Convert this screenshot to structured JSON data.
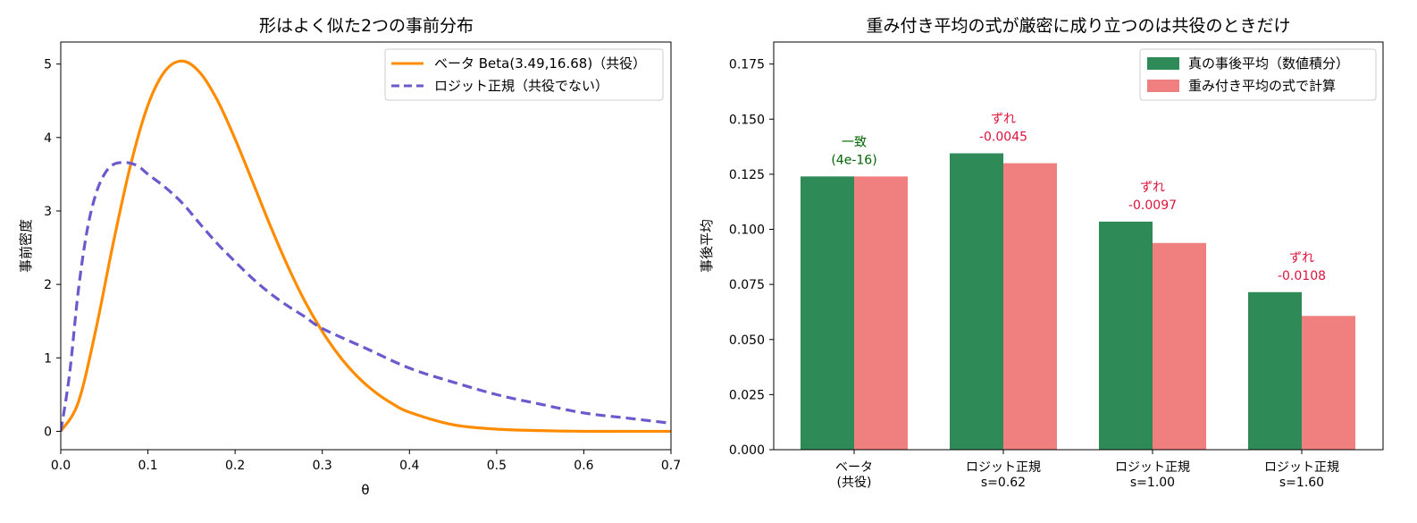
{
  "chart_data": [
    {
      "type": "line",
      "title": "形はよく似た2つの事前分布",
      "xlabel": "θ",
      "ylabel": "事前密度",
      "xlim": [
        0.0,
        0.7
      ],
      "ylim": [
        -0.25,
        5.3
      ],
      "x_ticks": [
        "0.0",
        "0.1",
        "0.2",
        "0.3",
        "0.4",
        "0.5",
        "0.6",
        "0.7"
      ],
      "y_ticks": [
        "0",
        "1",
        "2",
        "3",
        "4",
        "5"
      ],
      "legend_position": "top-right",
      "series": [
        {
          "name": "ベータ Beta(3.49,16.68)（共役）",
          "color": "#ff8c00",
          "style": "solid",
          "x": [
            0,
            0.02,
            0.04,
            0.06,
            0.08,
            0.1,
            0.12,
            0.14,
            0.16,
            0.18,
            0.2,
            0.22,
            0.24,
            0.26,
            0.28,
            0.3,
            0.32,
            0.34,
            0.36,
            0.38,
            0.4,
            0.45,
            0.5,
            0.55,
            0.6,
            0.65,
            0.7
          ],
          "y": [
            0,
            0.39,
            1.37,
            2.55,
            3.62,
            4.44,
            4.91,
            5.04,
            4.88,
            4.5,
            3.98,
            3.4,
            2.81,
            2.26,
            1.77,
            1.36,
            1.02,
            0.75,
            0.54,
            0.38,
            0.26,
            0.09,
            0.03,
            0.01,
            0.0,
            0.0,
            0.0
          ]
        },
        {
          "name": "ロジット正規（共役でない）",
          "color": "#6a5acd",
          "style": "dashed",
          "x": [
            0,
            0.01,
            0.02,
            0.03,
            0.04,
            0.05,
            0.06,
            0.07,
            0.08,
            0.09,
            0.1,
            0.12,
            0.14,
            0.16,
            0.18,
            0.2,
            0.22,
            0.24,
            0.26,
            0.28,
            0.3,
            0.35,
            0.4,
            0.45,
            0.5,
            0.55,
            0.6,
            0.65,
            0.7
          ],
          "y": [
            0,
            0.77,
            1.9,
            2.72,
            3.22,
            3.5,
            3.63,
            3.66,
            3.65,
            3.6,
            3.5,
            3.32,
            3.1,
            2.82,
            2.55,
            2.31,
            2.08,
            1.88,
            1.71,
            1.56,
            1.4,
            1.13,
            0.86,
            0.67,
            0.5,
            0.37,
            0.25,
            0.18,
            0.11
          ]
        }
      ]
    },
    {
      "type": "bar",
      "title": "重み付き平均の式が厳密に成り立つのは共役のときだけ",
      "xlabel": "",
      "ylabel": "事後平均",
      "ylim": [
        0.0,
        0.185
      ],
      "y_ticks": [
        "0.000",
        "0.025",
        "0.050",
        "0.075",
        "0.100",
        "0.125",
        "0.150",
        "0.175"
      ],
      "legend_position": "top-right",
      "categories": [
        [
          "ベータ",
          "(共役)"
        ],
        [
          "ロジット正規",
          "s=0.62"
        ],
        [
          "ロジット正規",
          "s=1.00"
        ],
        [
          "ロジット正規",
          "s=1.60"
        ]
      ],
      "series": [
        {
          "name": "真の事後平均（数値積分）",
          "color": "#2e8b57",
          "values": [
            0.124,
            0.1345,
            0.1035,
            0.0715
          ]
        },
        {
          "name": "重み付き平均の式で計算",
          "color": "#f08080",
          "values": [
            0.124,
            0.13,
            0.0938,
            0.0607
          ]
        }
      ],
      "annotations": [
        {
          "lines": [
            "一致",
            "(4e-16)"
          ],
          "color": "#006400"
        },
        {
          "lines": [
            "ずれ",
            "-0.0045"
          ],
          "color": "#dc143c"
        },
        {
          "lines": [
            "ずれ",
            "-0.0097"
          ],
          "color": "#dc143c"
        },
        {
          "lines": [
            "ずれ",
            "-0.0108"
          ],
          "color": "#dc143c"
        }
      ]
    }
  ]
}
